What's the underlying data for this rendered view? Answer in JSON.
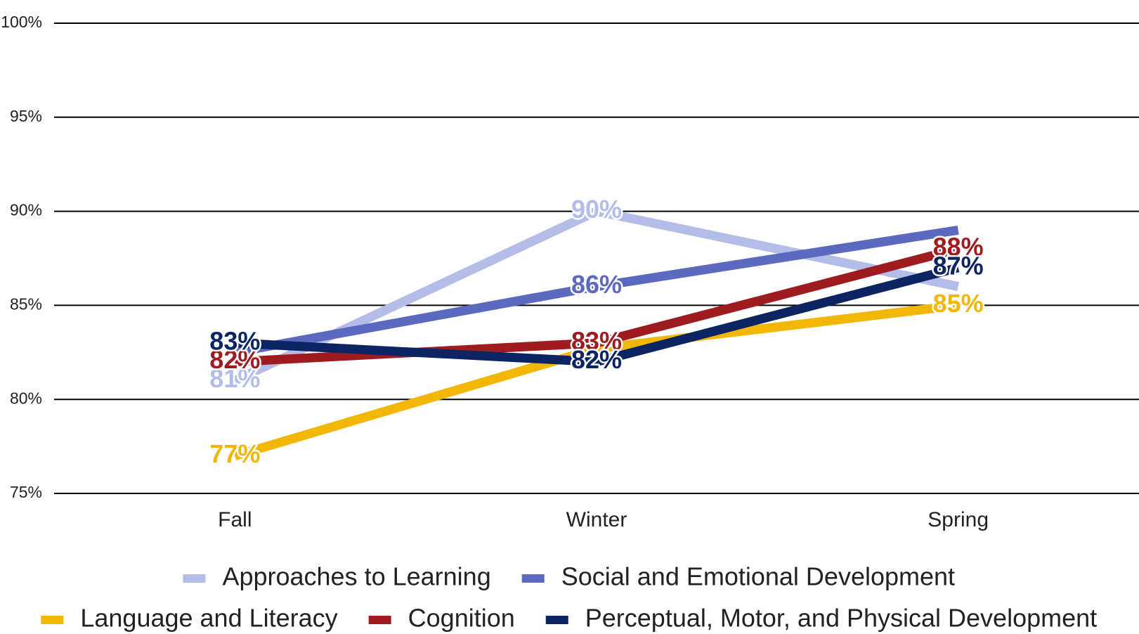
{
  "chart_data": {
    "type": "line",
    "categories": [
      "Fall",
      "Winter",
      "Spring"
    ],
    "ylim": [
      75,
      100
    ],
    "yticks": [
      {
        "value": 75,
        "label": "75%"
      },
      {
        "value": 80,
        "label": "80%"
      },
      {
        "value": 85,
        "label": "85%"
      },
      {
        "value": 90,
        "label": "90%"
      },
      {
        "value": 95,
        "label": "95%"
      },
      {
        "value": 100,
        "label": "100%"
      }
    ],
    "grid": true,
    "legend": "bottom",
    "series": [
      {
        "name": "Approaches to Learning",
        "color": "#b4bce8",
        "values": [
          81,
          90,
          86
        ],
        "value_labels": [
          "81%",
          "90%",
          null
        ]
      },
      {
        "name": "Social and Emotional Development",
        "color": "#5b6abf",
        "values": [
          82.5,
          86,
          89
        ],
        "value_labels": [
          null,
          "86%",
          null
        ]
      },
      {
        "name": "Language and Literacy",
        "color": "#f2b705",
        "values": [
          77,
          82.7,
          85
        ],
        "value_labels": [
          "77%",
          null,
          "85%"
        ]
      },
      {
        "name": "Cognition",
        "color": "#9e1b1f",
        "values": [
          82,
          83,
          88
        ],
        "value_labels": [
          "82%",
          "83%",
          "88%"
        ]
      },
      {
        "name": "Perceptual, Motor, and Physical Development",
        "color": "#0c2461",
        "values": [
          83,
          82,
          87
        ],
        "value_labels": [
          "83%",
          "82%",
          "87%"
        ]
      }
    ]
  }
}
